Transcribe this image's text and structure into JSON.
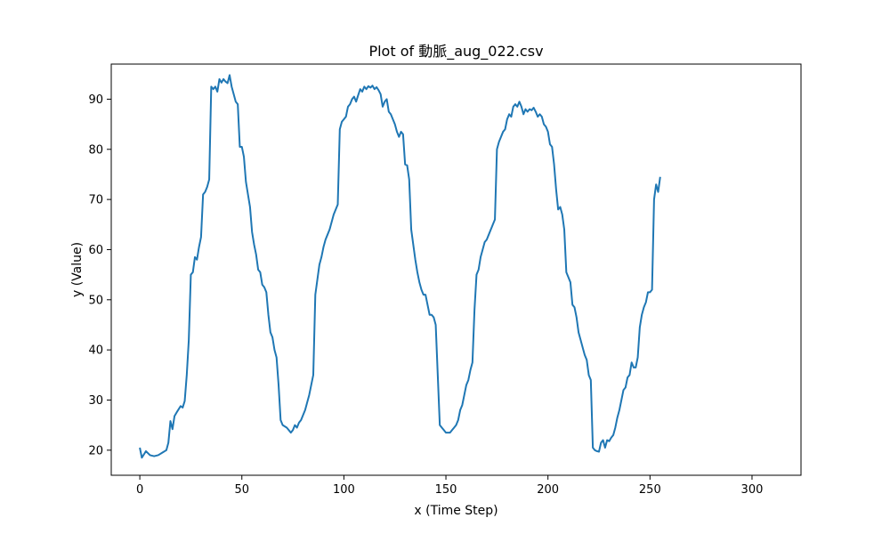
{
  "chart_data": {
    "type": "line",
    "title": "Plot of 動脈_aug_022.csv",
    "xlabel": "x (Time Step)",
    "ylabel": "y (Value)",
    "xlim": [
      -14,
      324
    ],
    "ylim": [
      15,
      97
    ],
    "xticks": [
      0,
      50,
      100,
      150,
      200,
      250,
      300
    ],
    "yticks": [
      20,
      30,
      40,
      50,
      60,
      70,
      80,
      90
    ],
    "grid": false,
    "line_color": "#1f77b4",
    "series": [
      {
        "values": [
          [
            0,
            20.5
          ],
          [
            1,
            18.5
          ],
          [
            3,
            19.8
          ],
          [
            5,
            19
          ],
          [
            7,
            18.8
          ],
          [
            9,
            19
          ],
          [
            11,
            19.5
          ],
          [
            13,
            20
          ],
          [
            14,
            21.5
          ],
          [
            15,
            25.8
          ],
          [
            16,
            24.2
          ],
          [
            17,
            26.8
          ],
          [
            18,
            27.5
          ],
          [
            20,
            28.8
          ],
          [
            21,
            28.5
          ],
          [
            22,
            29.8
          ],
          [
            23,
            35
          ],
          [
            24,
            42
          ],
          [
            25,
            55
          ],
          [
            26,
            55.5
          ],
          [
            27,
            58.5
          ],
          [
            28,
            58
          ],
          [
            29,
            60.5
          ],
          [
            30,
            62.5
          ],
          [
            31,
            71
          ],
          [
            32,
            71.5
          ],
          [
            33,
            72.5
          ],
          [
            34,
            74
          ],
          [
            35,
            92.5
          ],
          [
            36,
            92
          ],
          [
            37,
            92.5
          ],
          [
            38,
            91.5
          ],
          [
            39,
            94
          ],
          [
            40,
            93.3
          ],
          [
            41,
            94
          ],
          [
            42,
            93.5
          ],
          [
            43,
            93.2
          ],
          [
            44,
            94.8
          ],
          [
            45,
            92.5
          ],
          [
            46,
            91
          ],
          [
            47,
            89.5
          ],
          [
            48,
            89
          ],
          [
            49,
            80.5
          ],
          [
            50,
            80.5
          ],
          [
            51,
            78.5
          ],
          [
            52,
            73.5
          ],
          [
            53,
            71
          ],
          [
            54,
            68.5
          ],
          [
            55,
            63.5
          ],
          [
            56,
            61
          ],
          [
            57,
            59
          ],
          [
            58,
            56
          ],
          [
            59,
            55.5
          ],
          [
            60,
            53
          ],
          [
            61,
            52.5
          ],
          [
            62,
            51.5
          ],
          [
            63,
            47
          ],
          [
            64,
            43.5
          ],
          [
            65,
            42.5
          ],
          [
            66,
            40
          ],
          [
            67,
            38.5
          ],
          [
            68,
            33
          ],
          [
            69,
            26
          ],
          [
            70,
            25
          ],
          [
            72,
            24.5
          ],
          [
            73,
            24
          ],
          [
            74,
            23.5
          ],
          [
            75,
            24
          ],
          [
            76,
            25
          ],
          [
            77,
            24.5
          ],
          [
            78,
            25.5
          ],
          [
            79,
            26
          ],
          [
            80,
            27
          ],
          [
            81,
            28
          ],
          [
            82,
            29.5
          ],
          [
            83,
            31
          ],
          [
            84,
            33
          ],
          [
            85,
            35
          ],
          [
            86,
            51
          ],
          [
            87,
            54
          ],
          [
            88,
            57
          ],
          [
            89,
            58.5
          ],
          [
            90,
            60.5
          ],
          [
            91,
            62
          ],
          [
            92,
            63
          ],
          [
            93,
            64
          ],
          [
            94,
            65.5
          ],
          [
            95,
            67
          ],
          [
            96,
            68
          ],
          [
            97,
            69
          ],
          [
            98,
            84
          ],
          [
            99,
            85.5
          ],
          [
            100,
            86
          ],
          [
            101,
            86.5
          ],
          [
            102,
            88.5
          ],
          [
            103,
            89
          ],
          [
            104,
            90
          ],
          [
            105,
            90.5
          ],
          [
            106,
            89.5
          ],
          [
            107,
            90.8
          ],
          [
            108,
            92
          ],
          [
            109,
            91.5
          ],
          [
            110,
            92.5
          ],
          [
            111,
            92
          ],
          [
            112,
            92.6
          ],
          [
            113,
            92.3
          ],
          [
            114,
            92.7
          ],
          [
            115,
            92
          ],
          [
            116,
            92.4
          ],
          [
            117,
            91.8
          ],
          [
            118,
            91
          ],
          [
            119,
            88.5
          ],
          [
            120,
            89.5
          ],
          [
            121,
            90
          ],
          [
            122,
            87.5
          ],
          [
            123,
            87
          ],
          [
            124,
            86
          ],
          [
            125,
            85
          ],
          [
            126,
            83.5
          ],
          [
            127,
            82.5
          ],
          [
            128,
            83.5
          ],
          [
            129,
            83
          ],
          [
            130,
            77
          ],
          [
            131,
            76.8
          ],
          [
            132,
            74
          ],
          [
            133,
            64
          ],
          [
            134,
            61
          ],
          [
            135,
            58
          ],
          [
            136,
            55.5
          ],
          [
            137,
            53.5
          ],
          [
            138,
            52
          ],
          [
            139,
            51
          ],
          [
            140,
            51
          ],
          [
            141,
            49
          ],
          [
            142,
            47
          ],
          [
            143,
            47
          ],
          [
            144,
            46.5
          ],
          [
            145,
            45
          ],
          [
            146,
            35
          ],
          [
            147,
            25
          ],
          [
            148,
            24.5
          ],
          [
            149,
            24
          ],
          [
            150,
            23.5
          ],
          [
            152,
            23.5
          ],
          [
            153,
            24
          ],
          [
            154,
            24.5
          ],
          [
            155,
            25
          ],
          [
            156,
            26
          ],
          [
            157,
            28
          ],
          [
            158,
            29
          ],
          [
            159,
            31
          ],
          [
            160,
            33
          ],
          [
            161,
            34
          ],
          [
            162,
            36
          ],
          [
            163,
            37.5
          ],
          [
            164,
            48
          ],
          [
            165,
            55
          ],
          [
            166,
            56
          ],
          [
            167,
            58.5
          ],
          [
            168,
            60
          ],
          [
            169,
            61.5
          ],
          [
            170,
            62
          ],
          [
            171,
            63
          ],
          [
            172,
            64
          ],
          [
            173,
            65
          ],
          [
            174,
            66
          ],
          [
            175,
            80
          ],
          [
            176,
            81.5
          ],
          [
            177,
            82.5
          ],
          [
            178,
            83.5
          ],
          [
            179,
            84
          ],
          [
            180,
            86
          ],
          [
            181,
            87
          ],
          [
            182,
            86.5
          ],
          [
            183,
            88.5
          ],
          [
            184,
            89
          ],
          [
            185,
            88.5
          ],
          [
            186,
            89.5
          ],
          [
            187,
            88.5
          ],
          [
            188,
            87
          ],
          [
            189,
            88
          ],
          [
            190,
            87.5
          ],
          [
            191,
            88
          ],
          [
            192,
            87.8
          ],
          [
            193,
            88.3
          ],
          [
            194,
            87.5
          ],
          [
            195,
            86.5
          ],
          [
            196,
            87
          ],
          [
            197,
            86.5
          ],
          [
            198,
            85
          ],
          [
            199,
            84.5
          ],
          [
            200,
            83.5
          ],
          [
            201,
            81
          ],
          [
            202,
            80.5
          ],
          [
            203,
            77
          ],
          [
            204,
            72
          ],
          [
            205,
            68
          ],
          [
            206,
            68.5
          ],
          [
            207,
            67
          ],
          [
            208,
            64
          ],
          [
            209,
            55.5
          ],
          [
            210,
            54.5
          ],
          [
            211,
            53.5
          ],
          [
            212,
            49
          ],
          [
            213,
            48.5
          ],
          [
            214,
            46.5
          ],
          [
            215,
            43.5
          ],
          [
            216,
            42
          ],
          [
            217,
            40.5
          ],
          [
            218,
            39
          ],
          [
            219,
            38
          ],
          [
            220,
            35
          ],
          [
            221,
            34
          ],
          [
            222,
            20.5
          ],
          [
            223,
            20
          ],
          [
            224,
            19.8
          ],
          [
            225,
            19.7
          ],
          [
            226,
            21.5
          ],
          [
            227,
            22
          ],
          [
            228,
            20.5
          ],
          [
            229,
            22
          ],
          [
            230,
            21.8
          ],
          [
            231,
            22.5
          ],
          [
            232,
            23
          ],
          [
            233,
            24.5
          ],
          [
            234,
            26.5
          ],
          [
            235,
            28
          ],
          [
            236,
            30
          ],
          [
            237,
            32
          ],
          [
            238,
            32.5
          ],
          [
            239,
            34.5
          ],
          [
            240,
            35
          ],
          [
            241,
            37.5
          ],
          [
            242,
            36.5
          ],
          [
            243,
            36.5
          ],
          [
            244,
            38.5
          ],
          [
            245,
            44.5
          ],
          [
            246,
            47
          ],
          [
            247,
            48.5
          ],
          [
            248,
            49.5
          ],
          [
            249,
            51.5
          ],
          [
            250,
            51.5
          ],
          [
            251,
            52
          ],
          [
            252,
            70
          ],
          [
            253,
            73
          ],
          [
            254,
            71.5
          ],
          [
            255,
            74.5
          ]
        ]
      }
    ]
  }
}
